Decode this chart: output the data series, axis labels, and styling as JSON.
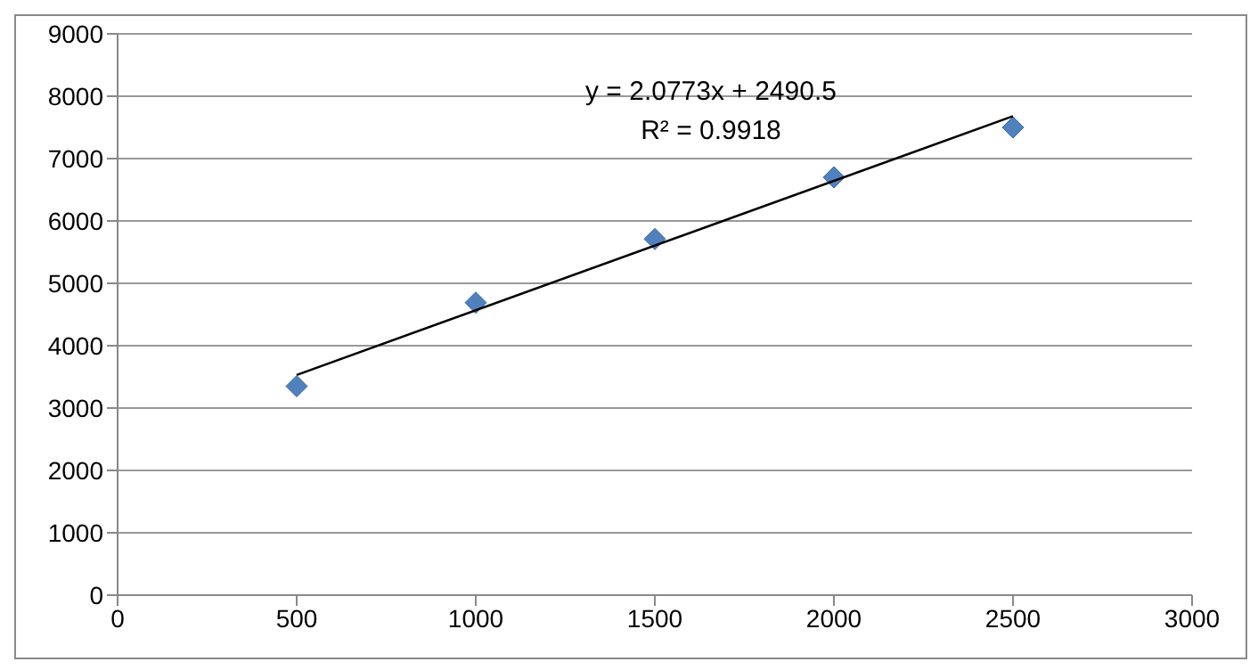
{
  "chart_data": {
    "type": "scatter",
    "x": [
      500,
      1000,
      1500,
      2000,
      2500
    ],
    "series": [
      {
        "type": "scatter",
        "color": "#4f81bd",
        "marker": "diamond",
        "values": [
          3350,
          4690,
          5710,
          6700,
          7500
        ]
      },
      {
        "type": "line",
        "color": "#000000",
        "marker": "none",
        "line_style": "solid",
        "x": [
          500,
          2500
        ],
        "values": [
          3530,
          7680
        ]
      }
    ],
    "xlim": [
      0,
      3000
    ],
    "xticks": [
      0,
      500,
      1000,
      1500,
      2000,
      2500,
      3000
    ],
    "ylim": [
      0,
      9000
    ],
    "yticks": [
      0,
      1000,
      2000,
      3000,
      4000,
      5000,
      6000,
      7000,
      8000,
      9000
    ],
    "grid": "y",
    "legend": false,
    "annotations": [
      "y = 2.0773x + 2490.5",
      "R² = 0.9918"
    ]
  }
}
